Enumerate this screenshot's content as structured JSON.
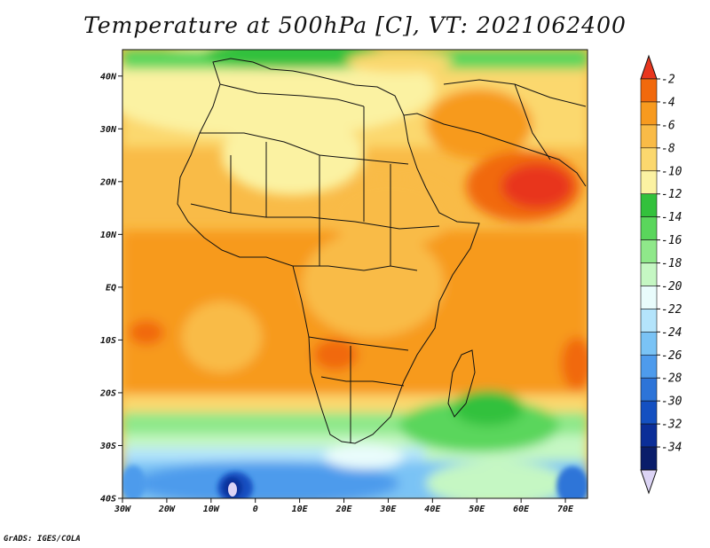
{
  "title": "Temperature at 500hPa [C], VT: 2021062400",
  "credit": "GrADS: IGES/COLA",
  "map": {
    "lat_labels": [
      "40N",
      "30N",
      "20N",
      "10N",
      "EQ",
      "10S",
      "20S",
      "30S",
      "40S"
    ],
    "lon_labels": [
      "30W",
      "20W",
      "10W",
      "0",
      "10E",
      "20E",
      "30E",
      "40E",
      "50E",
      "60E",
      "70E"
    ],
    "extent": {
      "lon_min": -30,
      "lon_max": 75,
      "lat_min": -40,
      "lat_max": 45
    }
  },
  "colorbar": {
    "levels": [
      "-2",
      "-4",
      "-6",
      "-8",
      "-10",
      "-12",
      "-14",
      "-16",
      "-18",
      "-20",
      "-22",
      "-24",
      "-26",
      "-28",
      "-30",
      "-32",
      "-34"
    ],
    "colors": [
      "#e8361e",
      "#f1690c",
      "#f79a1f",
      "#f9bb47",
      "#fbd86e",
      "#fbf2a2",
      "#33c13c",
      "#5ad65c",
      "#8fe88a",
      "#c5f7c3",
      "#e9fcfc",
      "#b4e4fb",
      "#7ac3f5",
      "#4e9bec",
      "#2d74d8",
      "#1450c1",
      "#0b2e98",
      "#0a1d6a",
      "#dcd4f5"
    ]
  }
}
